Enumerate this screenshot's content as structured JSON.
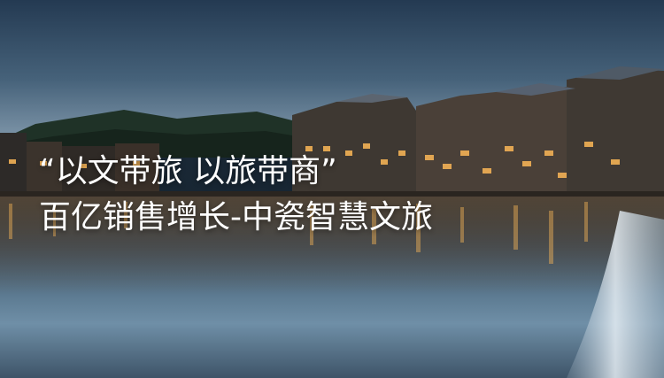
{
  "banner": {
    "headline_line1": "“以文带旅 以旅带商”",
    "headline_line2": "百亿销售增长-中瓷智慧文旅"
  },
  "palette": {
    "sky": "#3a5670",
    "water": "#5d7b92",
    "lights": "#f2b155",
    "text": "#ffffff"
  }
}
